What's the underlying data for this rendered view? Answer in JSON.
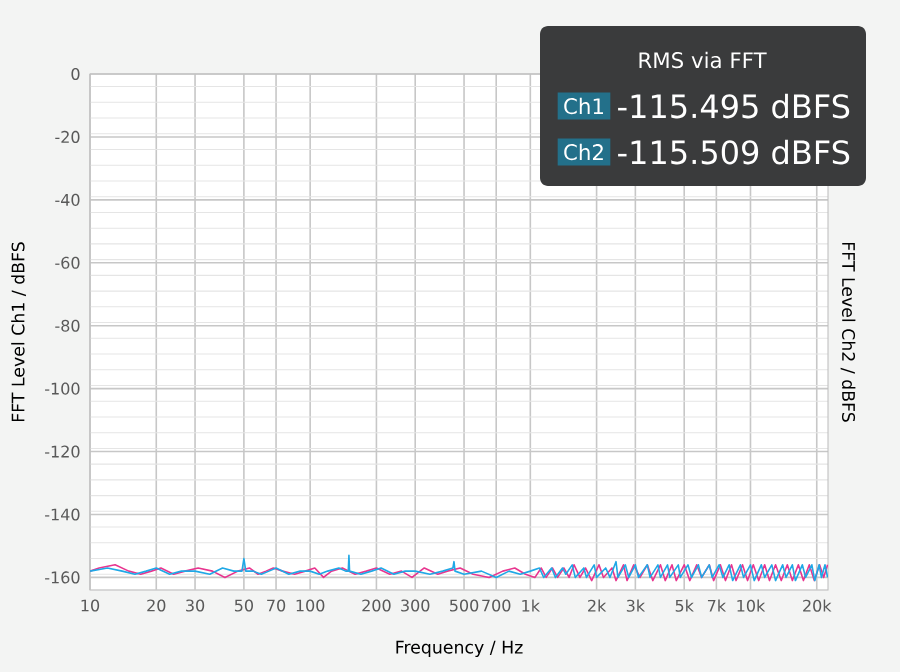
{
  "chart_data": {
    "type": "line",
    "xlabel": "Frequency / Hz",
    "ylabel": "FFT Level Ch1 / dBFS",
    "y2label": "FFT Level Ch2 / dBFS",
    "log": "x",
    "grid": true,
    "marker": "none",
    "line_style": "solid",
    "xlim": [
      10,
      22500
    ],
    "ylim": [
      -164,
      0
    ],
    "xticks": [
      10,
      20,
      30,
      50,
      70,
      100,
      200,
      300,
      500,
      700,
      {
        "value": 1000,
        "label": "1k"
      },
      {
        "value": 2000,
        "label": "2k"
      },
      {
        "value": 3000,
        "label": "3k"
      },
      {
        "value": 5000,
        "label": "5k"
      },
      {
        "value": 7000,
        "label": "7k"
      },
      {
        "value": 10000,
        "label": "10k"
      },
      {
        "value": 20000,
        "label": "20k"
      }
    ],
    "yticks": [
      0,
      -20,
      -40,
      -60,
      -80,
      -100,
      -120,
      -140,
      -160
    ],
    "annotations": [
      "RMS via FFT",
      "Ch1",
      "-115.495 dBFS",
      "Ch2",
      "-115.509 dBFS"
    ],
    "series": [
      {
        "color": "#e8358f",
        "x": [
          10,
          11,
          13,
          15,
          17,
          19,
          21,
          24,
          27,
          31,
          36,
          41,
          47,
          53,
          58,
          63,
          68,
          75,
          85,
          95,
          105,
          115,
          125,
          140,
          160,
          180,
          200,
          230,
          260,
          290,
          330,
          380,
          420,
          480,
          550,
          650,
          750,
          850,
          950,
          1050,
          1120,
          1180,
          1260,
          1330,
          1420,
          1500,
          1580,
          1680,
          1780,
          1900,
          2050,
          2150,
          2350,
          2450,
          2650,
          2750,
          2950,
          3150,
          3400,
          3600,
          3900,
          4100,
          4400,
          4600,
          5000,
          5300,
          5700,
          6000,
          6500,
          6800,
          7300,
          7700,
          8200,
          8600,
          9200,
          9700,
          10300,
          10900,
          11600,
          12200,
          13000,
          13800,
          14700,
          15500,
          16500,
          17400,
          18500,
          19500,
          20600,
          21500,
          22400
        ],
        "values": [
          -158,
          -157,
          -156,
          -158,
          -159,
          -158,
          -157,
          -159,
          -158,
          -157,
          -158,
          -160,
          -158,
          -157,
          -159,
          -158,
          -157,
          -158,
          -159,
          -158,
          -157,
          -160,
          -158,
          -157,
          -159,
          -158,
          -157,
          -159,
          -158,
          -160,
          -157,
          -159,
          -158,
          -157,
          -159,
          -160,
          -158,
          -157,
          -159,
          -160,
          -157,
          -160,
          -157,
          -160,
          -157,
          -160,
          -156,
          -160,
          -157,
          -161,
          -156,
          -160,
          -157,
          -161,
          -156,
          -161,
          -156,
          -160,
          -156,
          -161,
          -156,
          -161,
          -156,
          -161,
          -156,
          -161,
          -156,
          -160,
          -156,
          -161,
          -156,
          -161,
          -156,
          -161,
          -156,
          -161,
          -156,
          -161,
          -156,
          -161,
          -156,
          -161,
          -156,
          -161,
          -156,
          -161,
          -156,
          -161,
          -156,
          -160,
          -156
        ]
      },
      {
        "color": "#1fa8e6",
        "x": [
          10,
          12,
          14,
          16,
          18,
          20,
          23,
          26,
          30,
          35,
          40,
          45,
          49,
          50,
          51,
          55,
          60,
          65,
          70,
          80,
          90,
          100,
          110,
          120,
          135,
          145,
          149,
          150,
          151,
          170,
          190,
          210,
          240,
          270,
          300,
          350,
          400,
          445,
          450,
          455,
          500,
          600,
          700,
          800,
          900,
          1000,
          1100,
          1150,
          1250,
          1300,
          1400,
          1450,
          1550,
          1600,
          1750,
          1800,
          1950,
          2000,
          2200,
          2300,
          2450,
          2500,
          2700,
          2800,
          3000,
          3100,
          3400,
          3500,
          3800,
          3900,
          4200,
          4300,
          4700,
          4800,
          5200,
          5400,
          5800,
          6000,
          6500,
          6700,
          7200,
          7500,
          8000,
          8300,
          9000,
          9300,
          10000,
          10400,
          11200,
          11600,
          12500,
          13000,
          14000,
          14500,
          15500,
          16000,
          17200,
          17800,
          19000,
          19600,
          20500,
          21000,
          21800,
          22400
        ],
        "values": [
          -158,
          -157,
          -158,
          -159,
          -158,
          -157,
          -159,
          -158,
          -158,
          -159,
          -157,
          -158,
          -158,
          -154,
          -158,
          -158,
          -159,
          -158,
          -157,
          -159,
          -158,
          -158,
          -159,
          -158,
          -157,
          -158,
          -158,
          -153,
          -158,
          -159,
          -158,
          -157,
          -159,
          -158,
          -158,
          -159,
          -158,
          -157,
          -155,
          -158,
          -159,
          -158,
          -160,
          -158,
          -159,
          -158,
          -157,
          -160,
          -157,
          -160,
          -157,
          -159,
          -156,
          -160,
          -157,
          -160,
          -156,
          -160,
          -157,
          -160,
          -155,
          -160,
          -156,
          -160,
          -156,
          -160,
          -156,
          -160,
          -156,
          -160,
          -156,
          -160,
          -156,
          -160,
          -156,
          -160,
          -156,
          -160,
          -156,
          -160,
          -156,
          -160,
          -156,
          -161,
          -156,
          -160,
          -156,
          -161,
          -156,
          -160,
          -156,
          -161,
          -156,
          -160,
          -156,
          -161,
          -156,
          -160,
          -156,
          -161,
          -156,
          -160,
          -156,
          -160
        ]
      }
    ]
  }
}
